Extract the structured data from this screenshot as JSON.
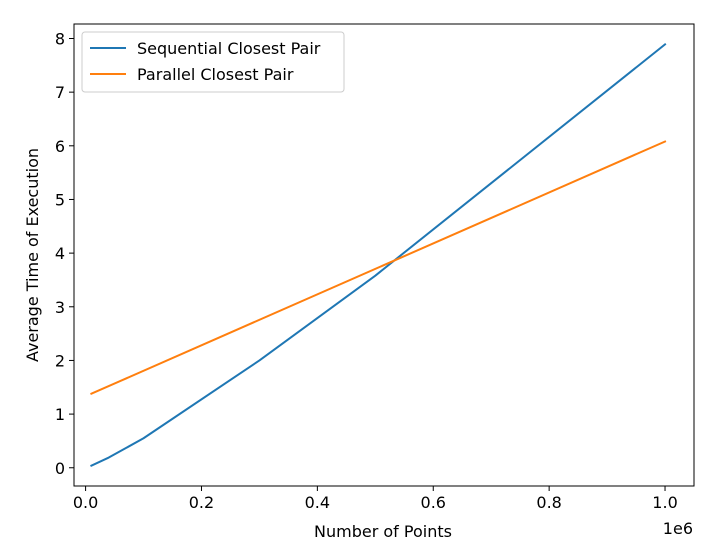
{
  "chart_data": {
    "type": "line",
    "title": "",
    "xlabel": "Number of Points",
    "ylabel": "Average Time of Execution",
    "x_offset_text": "1e6",
    "xlim": [
      -20000,
      1050000
    ],
    "ylim": [
      -0.34,
      8.27
    ],
    "x_ticks": [
      0,
      200000,
      400000,
      600000,
      800000,
      1000000
    ],
    "x_tick_labels": [
      "0.0",
      "0.2",
      "0.4",
      "0.6",
      "0.8",
      "1.0"
    ],
    "y_ticks": [
      0,
      1,
      2,
      3,
      4,
      5,
      6,
      7,
      8
    ],
    "y_tick_labels": [
      "0",
      "1",
      "2",
      "3",
      "4",
      "5",
      "6",
      "7",
      "8"
    ],
    "grid": false,
    "legend": "upper-left",
    "series": [
      {
        "name": "Sequential Closest Pair",
        "color": "#1f77b4",
        "x": [
          10000,
          40000,
          100000,
          300000,
          500000,
          1000000
        ],
        "y": [
          0.04,
          0.19,
          0.55,
          2.0,
          3.58,
          7.89
        ]
      },
      {
        "name": "Parallel Closest Pair",
        "color": "#ff7f0e",
        "x": [
          10000,
          1000000
        ],
        "y": [
          1.38,
          6.08
        ]
      }
    ]
  }
}
